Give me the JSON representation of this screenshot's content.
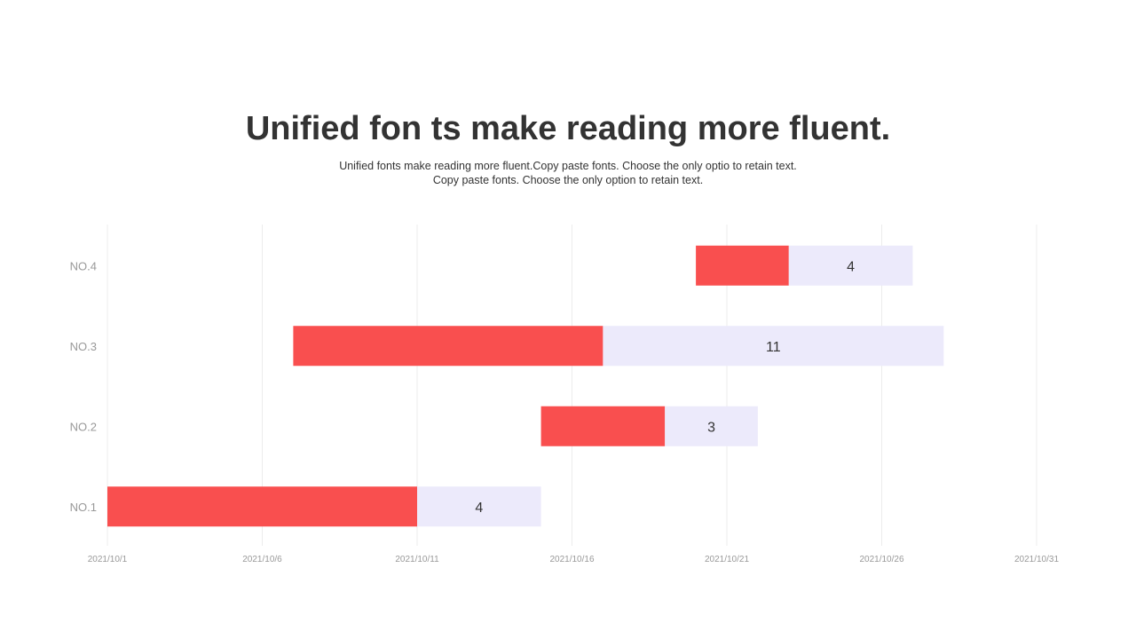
{
  "title": "Unified fon ts make reading more fluent.",
  "subtitle_line1": "Unified  fonts make reading more fluent.Copy  paste fonts. Choose  the only optio to retain text.",
  "subtitle_line2": "Copy paste  fonts. Choose the only option to retain text.",
  "chart_data": {
    "type": "bar",
    "orientation": "horizontal",
    "stacked": true,
    "categories": [
      "NO.1",
      "NO.2",
      "NO.3",
      "NO.4"
    ],
    "series": [
      {
        "role": "offset-start-date",
        "values": [
          "2021-10-01",
          "2021-10-15",
          "2021-10-07",
          "2021-10-20"
        ]
      },
      {
        "color": "#F94F4F",
        "values_days": [
          10,
          4,
          10,
          3
        ]
      },
      {
        "color": "#ECEAFB",
        "values_days": [
          4,
          3,
          11,
          4
        ],
        "data_labels": [
          "4",
          "3",
          "11",
          "4"
        ]
      }
    ],
    "x_ticks": [
      "2021/10/1",
      "2021/10/6",
      "2021/10/11",
      "2021/10/16",
      "2021/10/21",
      "2021/10/26",
      "2021/10/31"
    ],
    "xlim": [
      "2021-10-01",
      "2021-10-31"
    ],
    "grid": "vertical",
    "legend": "none"
  }
}
